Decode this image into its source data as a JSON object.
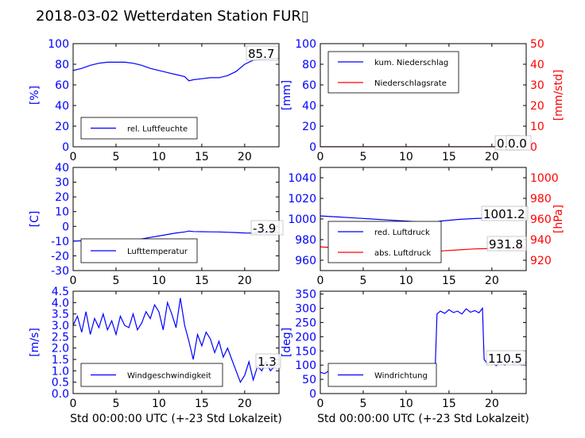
{
  "figure": {
    "title": "2018-03-02 Wetterdaten Station FUR▯"
  },
  "colors": {
    "blue": "#0000ff",
    "red": "#ff0000",
    "black": "#000000",
    "lightblue": "#8080ff"
  },
  "chart_data": [
    {
      "id": "humidity",
      "type": "line",
      "xlim": [
        0,
        24
      ],
      "xticks": [
        0,
        5,
        10,
        15,
        20
      ],
      "ylim": [
        0,
        100
      ],
      "yticks": [
        0,
        20,
        40,
        60,
        80,
        100
      ],
      "ylabel": "[%]",
      "xlabel": "",
      "legend": [
        "rel. Luftfeuchte"
      ],
      "legend_position": "lower-left",
      "annotation": "85.7",
      "series": [
        {
          "name": "rel. Luftfeuchte",
          "color": "#0000ff",
          "x": [
            0,
            1,
            2,
            3,
            4,
            5,
            6,
            7,
            8,
            9,
            10,
            11,
            12,
            13,
            13.5,
            14,
            15,
            16,
            17,
            18,
            19,
            20,
            21,
            22,
            23,
            24
          ],
          "y": [
            74,
            76,
            79,
            81,
            82,
            82,
            82,
            81,
            79,
            76,
            74,
            72,
            70,
            68,
            64,
            65,
            66,
            67,
            67,
            69,
            73,
            80,
            84,
            85,
            85.5,
            85.7
          ]
        }
      ]
    },
    {
      "id": "precipitation",
      "type": "line",
      "xlim": [
        0,
        24
      ],
      "xticks": [
        0,
        5,
        10,
        15,
        20
      ],
      "ylim": [
        0,
        100
      ],
      "yticks": [
        0,
        20,
        40,
        60,
        80,
        100
      ],
      "ylabel": "[mm]",
      "y2lim": [
        0,
        50
      ],
      "y2ticks": [
        0,
        10,
        20,
        30,
        40,
        50
      ],
      "y2label": "[mm/std]",
      "legend": [
        "kum. Niederschlag",
        "Niederschlagsrate"
      ],
      "legend_position": "upper-left",
      "annotation": "0.0",
      "annotation2": "0.0",
      "series": [
        {
          "name": "kum. Niederschlag",
          "color": "#0000ff",
          "x": [
            0,
            24
          ],
          "y": [
            0,
            0
          ]
        },
        {
          "name": "Niederschlagsrate",
          "color": "#ff0000",
          "axis": "y2",
          "x": [
            0,
            24
          ],
          "y": [
            0,
            0
          ]
        }
      ]
    },
    {
      "id": "temperature",
      "type": "line",
      "xlim": [
        0,
        24
      ],
      "xticks": [
        0,
        5,
        10,
        15,
        20
      ],
      "ylim": [
        -30,
        40
      ],
      "yticks": [
        -30,
        -20,
        -10,
        0,
        10,
        20,
        30,
        40
      ],
      "ylabel": "[C]",
      "legend": [
        "Lufttemperatur"
      ],
      "legend_position": "lower-left",
      "annotation": "-3.9",
      "series": [
        {
          "name": "Lufttemperatur",
          "color": "#0000ff",
          "x": [
            0,
            1,
            2,
            3,
            4,
            5,
            6,
            7,
            8,
            9,
            10,
            11,
            12,
            13,
            13.5,
            14,
            15,
            16,
            17,
            18,
            19,
            20,
            21,
            22,
            23,
            24
          ],
          "y": [
            -10,
            -9.8,
            -9.6,
            -9.5,
            -9.4,
            -9.3,
            -9.2,
            -9,
            -8.5,
            -7.5,
            -6.5,
            -5.5,
            -4.5,
            -3.8,
            -3.2,
            -3.5,
            -3.6,
            -3.7,
            -3.8,
            -4,
            -4.2,
            -4.5,
            -4.6,
            -4.4,
            -4.1,
            -3.9
          ]
        }
      ]
    },
    {
      "id": "pressure",
      "type": "line",
      "xlim": [
        0,
        24
      ],
      "xticks": [
        0,
        5,
        10,
        15,
        20
      ],
      "ylim": [
        950,
        1050
      ],
      "yticks": [
        960,
        980,
        1000,
        1020,
        1040
      ],
      "ylabel": "",
      "y2lim": [
        910,
        1010
      ],
      "y2ticks": [
        920,
        940,
        960,
        980,
        1000
      ],
      "y2label": "[hPa]",
      "legend": [
        "red. Luftdruck",
        "abs. Luftdruck"
      ],
      "legend_position": "lower-left",
      "annotation": "1001.2",
      "annotation2": "931.8",
      "series": [
        {
          "name": "red. Luftdruck",
          "color": "#0000ff",
          "x": [
            0,
            2,
            4,
            6,
            8,
            10,
            12,
            13,
            14,
            16,
            18,
            20,
            22,
            24
          ],
          "y": [
            1003,
            1002,
            1001,
            1000,
            999,
            998,
            997,
            996.5,
            998,
            999.5,
            1000.5,
            1001,
            1001.3,
            1001.2
          ]
        },
        {
          "name": "abs. Luftdruck",
          "color": "#ff0000",
          "axis": "y2",
          "x": [
            0,
            2,
            4,
            6,
            8,
            10,
            12,
            13,
            14,
            16,
            18,
            20,
            22,
            24
          ],
          "y": [
            933,
            932,
            931,
            930,
            929.5,
            929,
            928.5,
            928,
            929,
            930,
            931,
            931.5,
            931.9,
            931.8
          ]
        }
      ]
    },
    {
      "id": "windspeed",
      "type": "line",
      "xlim": [
        0,
        24
      ],
      "xticks": [
        0,
        5,
        10,
        15,
        20
      ],
      "ylim": [
        0,
        4.5
      ],
      "yticks": [
        0.0,
        0.5,
        1.0,
        1.5,
        2.0,
        2.5,
        3.0,
        3.5,
        4.0,
        4.5
      ],
      "ylabel": "[m/s]",
      "xlabel": "Std 00:00:00 UTC (+-23 Std Lokalzeit)",
      "legend": [
        "Windgeschwindigkeit"
      ],
      "legend_position": "lower-left",
      "annotation": "1.3",
      "series": [
        {
          "name": "Windgeschwindigkeit",
          "color": "#0000ff",
          "x": [
            0,
            0.5,
            1,
            1.5,
            2,
            2.5,
            3,
            3.5,
            4,
            4.5,
            5,
            5.5,
            6,
            6.5,
            7,
            7.5,
            8,
            8.5,
            9,
            9.5,
            10,
            10.5,
            11,
            11.5,
            12,
            12.5,
            13,
            13.5,
            14,
            14.5,
            15,
            15.5,
            16,
            16.5,
            17,
            17.5,
            18,
            18.5,
            19,
            19.5,
            20,
            20.5,
            21,
            21.5,
            22,
            22.5,
            23,
            23.5,
            24
          ],
          "y": [
            3.0,
            3.4,
            2.7,
            3.6,
            2.6,
            3.3,
            2.9,
            3.5,
            2.8,
            3.2,
            2.6,
            3.4,
            3.0,
            2.9,
            3.5,
            2.8,
            3.1,
            3.6,
            3.3,
            3.9,
            3.6,
            2.8,
            4.0,
            3.5,
            2.9,
            4.2,
            3.0,
            2.3,
            1.5,
            2.6,
            2.1,
            2.7,
            2.4,
            1.8,
            2.3,
            1.6,
            2.0,
            1.5,
            1.0,
            0.5,
            0.8,
            1.4,
            0.6,
            1.2,
            1.0,
            1.4,
            1.0,
            1.2,
            1.3
          ]
        }
      ]
    },
    {
      "id": "winddirection",
      "type": "line",
      "xlim": [
        0,
        24
      ],
      "xticks": [
        0,
        5,
        10,
        15,
        20
      ],
      "ylim": [
        0,
        360
      ],
      "yticks": [
        0,
        50,
        100,
        150,
        200,
        250,
        300,
        350
      ],
      "ylabel": "[deg]",
      "xlabel": "Std 00:00:00 UTC (+-23 Std Lokalzeit)",
      "legend": [
        "Windrichtung"
      ],
      "legend_position": "lower-left",
      "annotation": "110.5",
      "series": [
        {
          "name": "Windrichtung",
          "color": "#0000ff",
          "x": [
            0,
            0.5,
            1,
            1.5,
            2,
            2.5,
            3,
            3.5,
            4,
            4.5,
            5,
            5.5,
            6,
            6.5,
            7,
            7.5,
            8,
            8.5,
            9,
            9.5,
            10,
            10.5,
            11,
            11.5,
            12,
            12.5,
            13,
            13.4,
            13.6,
            14,
            14.5,
            15,
            15.5,
            16,
            16.5,
            17,
            17.5,
            18,
            18.5,
            18.9,
            19.1,
            19.5,
            20,
            20.5,
            21,
            21.5,
            22,
            22.5,
            23,
            23.5,
            24
          ],
          "y": [
            75,
            70,
            80,
            72,
            78,
            68,
            82,
            75,
            70,
            85,
            78,
            72,
            88,
            80,
            76,
            90,
            82,
            78,
            86,
            80,
            74,
            84,
            78,
            70,
            82,
            76,
            80,
            95,
            280,
            290,
            282,
            295,
            285,
            290,
            280,
            298,
            286,
            292,
            284,
            300,
            120,
            105,
            115,
            98,
            112,
            100,
            118,
            104,
            110,
            100,
            110.5
          ]
        }
      ]
    }
  ]
}
